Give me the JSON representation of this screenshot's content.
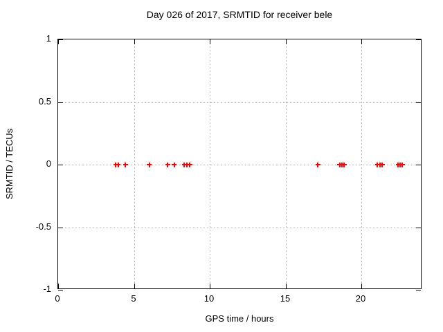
{
  "window": {
    "background": "#ffffff"
  },
  "chart_data": {
    "type": "scatter",
    "title": "Day 026 of 2017, SRMTID for receiver bele",
    "xlabel": "GPS time / hours",
    "ylabel": "SRMTID / TECUs",
    "xlim": [
      0,
      24
    ],
    "ylim": [
      -1,
      1
    ],
    "xticks": [
      0,
      5,
      10,
      15,
      20
    ],
    "xtick_labels": [
      "0",
      "5",
      "10",
      "15",
      "20"
    ],
    "yticks": [
      1,
      0.5,
      0,
      -0.5,
      -1
    ],
    "ytick_labels": [
      "1",
      "0.5",
      "0",
      "-0.5",
      "-1"
    ],
    "grid": true,
    "grid_style": "dashed",
    "legend": "none",
    "marker": "plus",
    "colors": {
      "marker": "#ff0000",
      "grid": "#b5b5b5",
      "axis": "#000000",
      "text": "#000000"
    },
    "series": [
      {
        "name": "SRMTID",
        "x": [
          3.79,
          3.95,
          4.43,
          6.02,
          7.21,
          7.66,
          8.31,
          8.5,
          8.69,
          17.12,
          18.55,
          18.7,
          18.85,
          21.05,
          21.2,
          21.37,
          22.42,
          22.55,
          22.68
        ],
        "y": [
          0,
          0,
          0,
          0,
          0,
          0,
          0,
          0,
          0,
          0,
          0,
          0,
          0,
          0,
          0,
          0,
          0,
          0,
          0
        ]
      }
    ]
  }
}
